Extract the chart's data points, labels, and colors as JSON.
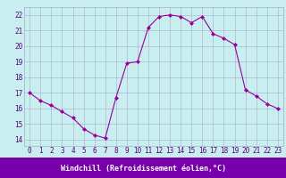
{
  "x": [
    0,
    1,
    2,
    3,
    4,
    5,
    6,
    7,
    8,
    9,
    10,
    11,
    12,
    13,
    14,
    15,
    16,
    17,
    18,
    19,
    20,
    21,
    22,
    23
  ],
  "y": [
    17.0,
    16.5,
    16.2,
    15.8,
    15.4,
    14.7,
    14.3,
    14.1,
    16.7,
    18.9,
    19.0,
    21.2,
    21.9,
    22.0,
    21.9,
    21.5,
    21.9,
    20.8,
    20.5,
    20.1,
    17.2,
    16.8,
    16.3,
    16.0
  ],
  "line_color": "#990099",
  "marker": "D",
  "marker_size": 2.0,
  "line_width": 0.8,
  "bg_color": "#c8eef0",
  "grid_color": "#aaaacc",
  "xlabel": "Windchill (Refroidissement éolien,°C)",
  "xlabel_fontsize": 6,
  "ylabel_ticks": [
    14,
    15,
    16,
    17,
    18,
    19,
    20,
    21,
    22
  ],
  "ylim": [
    13.6,
    22.5
  ],
  "xlim": [
    -0.5,
    23.5
  ],
  "xlabel_bg": "#7700aa",
  "xlabel_color": "#ffffff",
  "tick_color": "#550077",
  "tick_fontsize": 5.5
}
